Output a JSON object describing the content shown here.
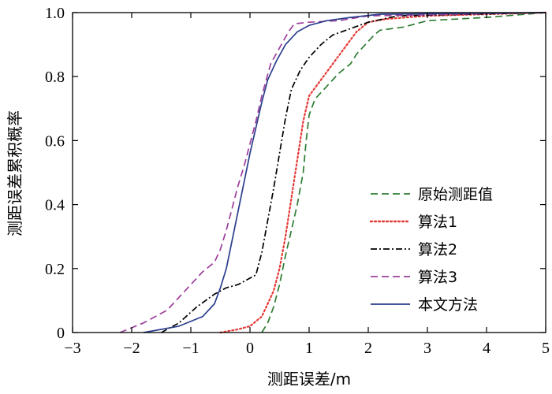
{
  "chart_data": {
    "type": "line",
    "title": "",
    "xlabel": "测距误差/m",
    "ylabel": "测距误差累积概率",
    "xlim": [
      -3,
      5
    ],
    "ylim": [
      0,
      1
    ],
    "xticks": [
      -3,
      -2,
      -1,
      0,
      1,
      2,
      3,
      4,
      5
    ],
    "yticks": [
      0,
      0.2,
      0.4,
      0.6,
      0.8,
      1.0
    ],
    "xtick_labels": [
      "−3",
      "−2",
      "−1",
      "0",
      "1",
      "2",
      "3",
      "4",
      "5"
    ],
    "ytick_labels": [
      "0",
      "0.2",
      "0.4",
      "0.6",
      "0.8",
      "1.0"
    ],
    "grid": false,
    "legend_position": "lower-right",
    "series": [
      {
        "name": "原始测距值",
        "color": "#2e7d32",
        "dash": "dashed",
        "points": [
          [
            0.2,
            0.0
          ],
          [
            0.3,
            0.03
          ],
          [
            0.4,
            0.08
          ],
          [
            0.5,
            0.15
          ],
          [
            0.6,
            0.24
          ],
          [
            0.7,
            0.32
          ],
          [
            0.8,
            0.4
          ],
          [
            0.9,
            0.5
          ],
          [
            0.95,
            0.6
          ],
          [
            1.0,
            0.68
          ],
          [
            1.1,
            0.73
          ],
          [
            1.3,
            0.77
          ],
          [
            1.5,
            0.81
          ],
          [
            1.7,
            0.84
          ],
          [
            1.8,
            0.87
          ],
          [
            1.9,
            0.89
          ],
          [
            2.1,
            0.93
          ],
          [
            2.2,
            0.945
          ],
          [
            2.6,
            0.955
          ],
          [
            3.0,
            0.975
          ],
          [
            4.0,
            0.985
          ],
          [
            5.0,
            1.0
          ]
        ]
      },
      {
        "name": "算法1",
        "color": "#e53935",
        "dash": "dotted",
        "points": [
          [
            -0.5,
            0.0
          ],
          [
            -0.2,
            0.01
          ],
          [
            0.0,
            0.02
          ],
          [
            0.2,
            0.05
          ],
          [
            0.4,
            0.13
          ],
          [
            0.5,
            0.2
          ],
          [
            0.6,
            0.3
          ],
          [
            0.7,
            0.42
          ],
          [
            0.8,
            0.54
          ],
          [
            0.9,
            0.66
          ],
          [
            1.0,
            0.74
          ],
          [
            1.2,
            0.79
          ],
          [
            1.4,
            0.84
          ],
          [
            1.6,
            0.89
          ],
          [
            1.8,
            0.94
          ],
          [
            2.0,
            0.97
          ],
          [
            2.3,
            0.98
          ],
          [
            3.0,
            0.99
          ],
          [
            5.0,
            1.0
          ]
        ]
      },
      {
        "name": "算法2",
        "color": "#000000",
        "dash": "dashdot",
        "points": [
          [
            -1.5,
            0.0
          ],
          [
            -1.2,
            0.03
          ],
          [
            -0.9,
            0.08
          ],
          [
            -0.6,
            0.12
          ],
          [
            -0.4,
            0.14
          ],
          [
            -0.2,
            0.15
          ],
          [
            0.1,
            0.18
          ],
          [
            0.2,
            0.25
          ],
          [
            0.3,
            0.35
          ],
          [
            0.4,
            0.45
          ],
          [
            0.5,
            0.56
          ],
          [
            0.6,
            0.67
          ],
          [
            0.7,
            0.76
          ],
          [
            0.85,
            0.82
          ],
          [
            1.0,
            0.86
          ],
          [
            1.2,
            0.9
          ],
          [
            1.4,
            0.93
          ],
          [
            1.7,
            0.95
          ],
          [
            2.0,
            0.97
          ],
          [
            2.5,
            0.99
          ],
          [
            5.0,
            1.0
          ]
        ]
      },
      {
        "name": "算法3",
        "color": "#9c3e9c",
        "dash": "dashed",
        "points": [
          [
            -2.2,
            0.0
          ],
          [
            -1.8,
            0.03
          ],
          [
            -1.4,
            0.07
          ],
          [
            -1.0,
            0.15
          ],
          [
            -0.8,
            0.19
          ],
          [
            -0.6,
            0.22
          ],
          [
            -0.5,
            0.26
          ],
          [
            -0.4,
            0.32
          ],
          [
            -0.3,
            0.39
          ],
          [
            -0.2,
            0.46
          ],
          [
            -0.1,
            0.52
          ],
          [
            0.0,
            0.59
          ],
          [
            0.1,
            0.66
          ],
          [
            0.2,
            0.74
          ],
          [
            0.35,
            0.84
          ],
          [
            0.5,
            0.89
          ],
          [
            0.65,
            0.94
          ],
          [
            0.75,
            0.965
          ],
          [
            1.0,
            0.97
          ],
          [
            1.5,
            0.975
          ],
          [
            2.0,
            0.99
          ],
          [
            5.0,
            1.0
          ]
        ]
      },
      {
        "name": "本文方法",
        "color": "#2c3e8c",
        "dash": "solid",
        "points": [
          [
            -1.8,
            0.0
          ],
          [
            -1.2,
            0.02
          ],
          [
            -0.8,
            0.05
          ],
          [
            -0.6,
            0.09
          ],
          [
            -0.5,
            0.14
          ],
          [
            -0.4,
            0.2
          ],
          [
            -0.3,
            0.29
          ],
          [
            -0.2,
            0.38
          ],
          [
            -0.1,
            0.47
          ],
          [
            0.0,
            0.56
          ],
          [
            0.1,
            0.64
          ],
          [
            0.2,
            0.72
          ],
          [
            0.3,
            0.79
          ],
          [
            0.45,
            0.85
          ],
          [
            0.6,
            0.9
          ],
          [
            0.8,
            0.94
          ],
          [
            1.0,
            0.96
          ],
          [
            1.3,
            0.975
          ],
          [
            1.7,
            0.985
          ],
          [
            2.2,
            0.995
          ],
          [
            5.0,
            1.0
          ]
        ]
      }
    ]
  }
}
